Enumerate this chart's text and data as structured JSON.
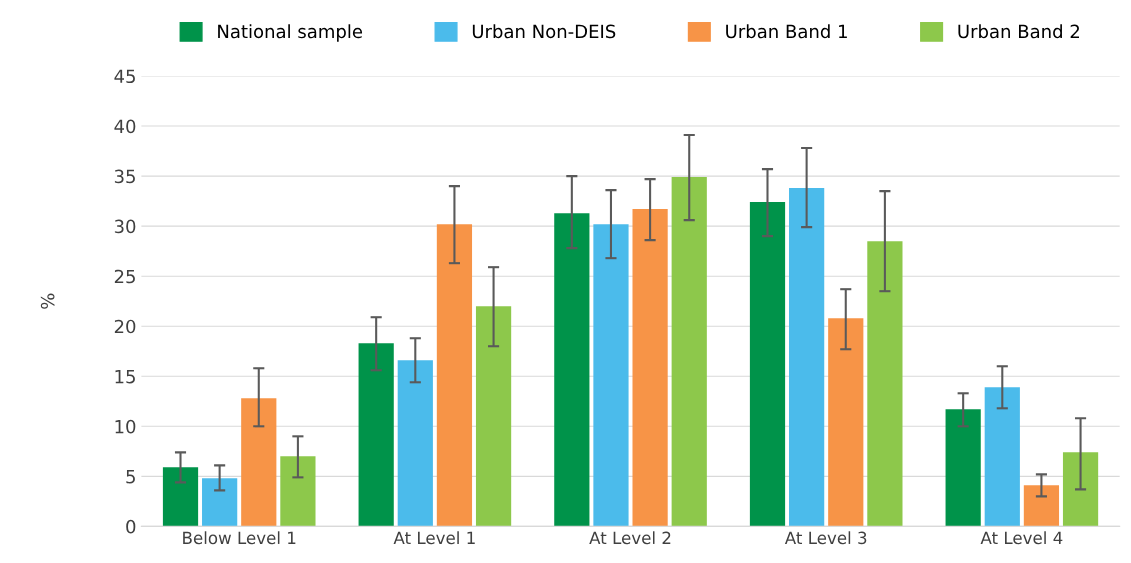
{
  "chart_data": {
    "type": "bar",
    "ylabel": "%",
    "categories": [
      "Below Level 1",
      "At Level 1",
      "At Level 2",
      "At Level 3",
      "At Level 4"
    ],
    "series": [
      {
        "name": "National sample",
        "color": "#00934a",
        "values": [
          5.9,
          18.3,
          31.3,
          32.4,
          11.7
        ],
        "errors": [
          [
            4.4,
            7.4
          ],
          [
            15.6,
            20.9
          ],
          [
            27.8,
            35.0
          ],
          [
            29.0,
            35.7
          ],
          [
            10.0,
            13.3
          ]
        ]
      },
      {
        "name": "Urban Non-DEIS",
        "color": "#4bbbeb",
        "values": [
          4.8,
          16.6,
          30.2,
          33.8,
          13.9
        ],
        "errors": [
          [
            3.6,
            6.1
          ],
          [
            14.4,
            18.8
          ],
          [
            26.8,
            33.6
          ],
          [
            29.9,
            37.8
          ],
          [
            11.8,
            16.0
          ]
        ]
      },
      {
        "name": "Urban Band 1",
        "color": "#f79447",
        "values": [
          12.8,
          30.2,
          31.7,
          20.8,
          4.1
        ],
        "errors": [
          [
            10.0,
            15.8
          ],
          [
            26.3,
            34.0
          ],
          [
            28.6,
            34.7
          ],
          [
            17.7,
            23.7
          ],
          [
            3.0,
            5.2
          ]
        ]
      },
      {
        "name": "Urban Band 2",
        "color": "#8dc84b",
        "values": [
          7.0,
          22.0,
          34.9,
          28.5,
          7.4
        ],
        "errors": [
          [
            4.9,
            9.0
          ],
          [
            18.0,
            25.9
          ],
          [
            30.6,
            39.1
          ],
          [
            23.5,
            33.5
          ],
          [
            3.7,
            10.8
          ]
        ]
      }
    ],
    "ylim": [
      0,
      45
    ],
    "yticks": [
      0,
      5,
      10,
      15,
      20,
      25,
      30,
      35,
      40,
      45
    ],
    "grid": "y",
    "legend": "top"
  }
}
